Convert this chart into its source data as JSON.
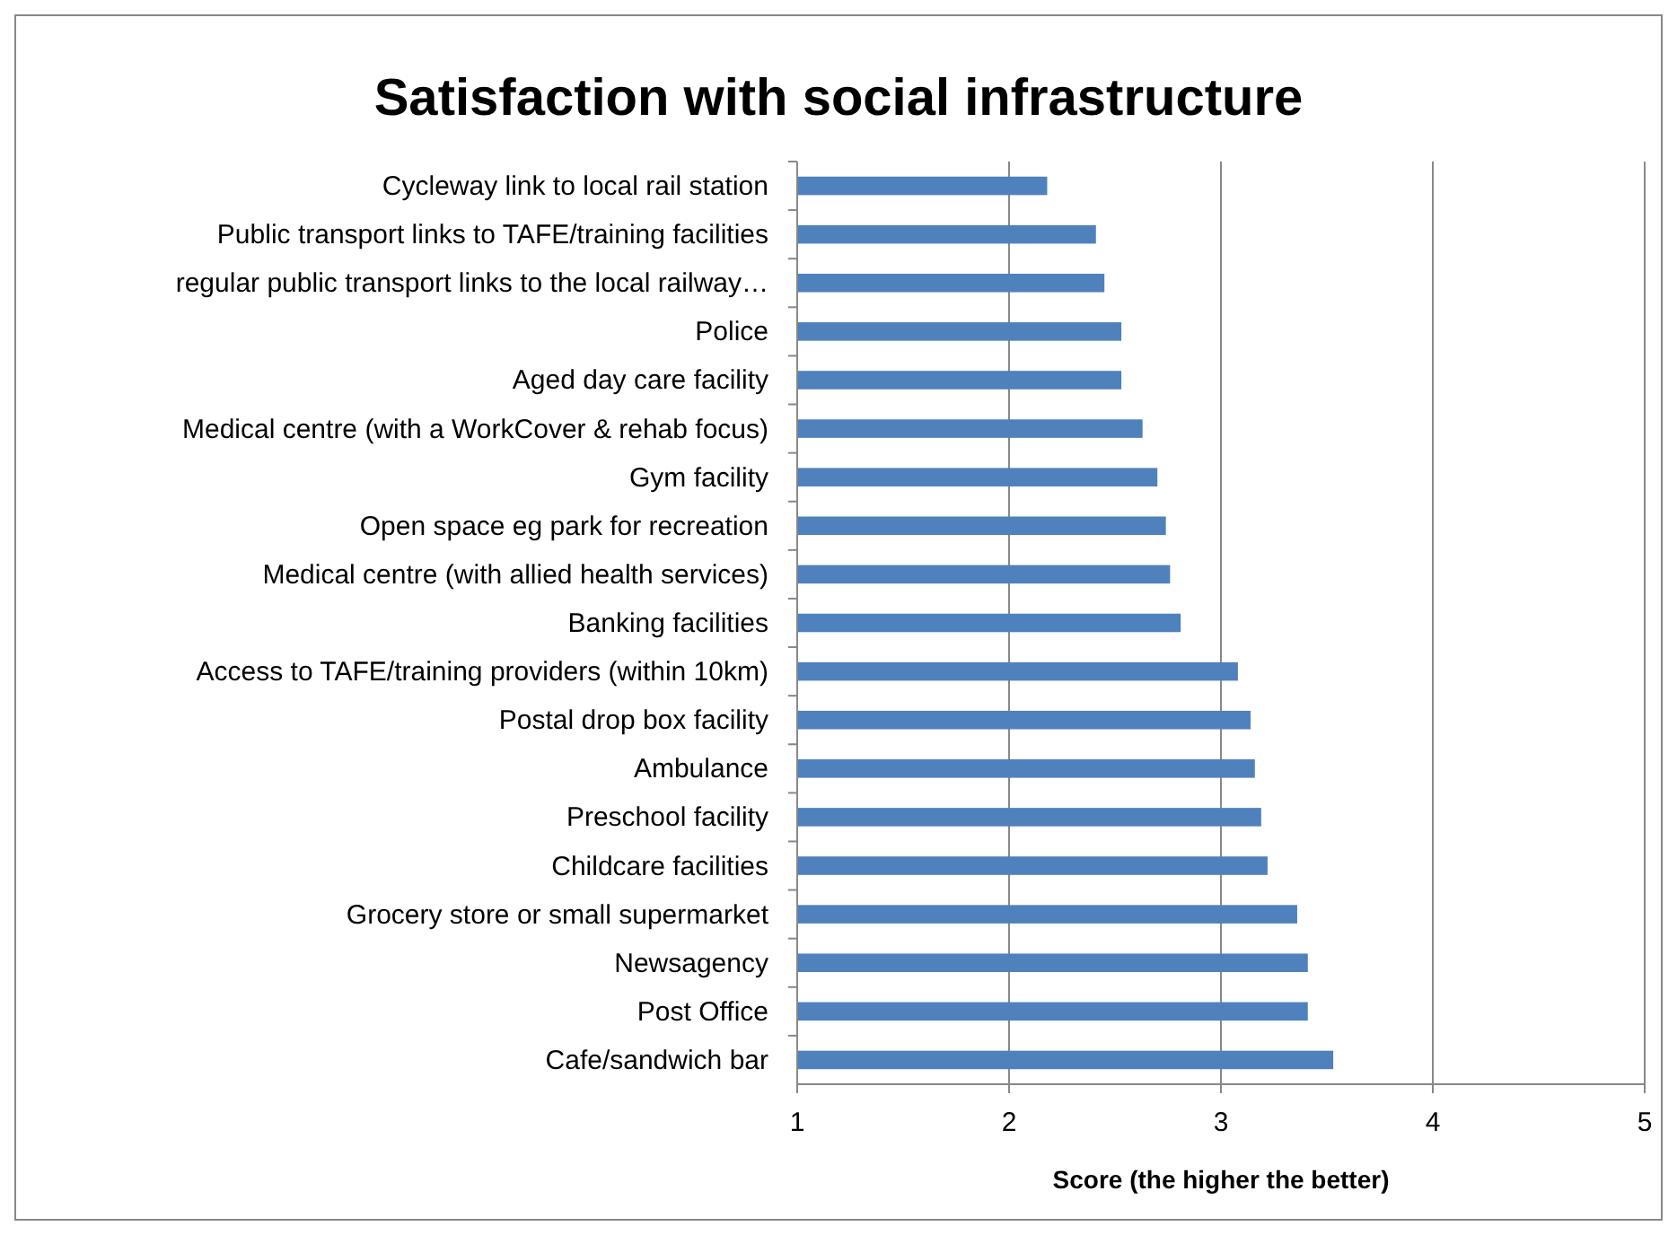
{
  "chart_data": {
    "type": "bar",
    "orientation": "horizontal",
    "title": "Satisfaction with social infrastructure",
    "xlabel": "Score (the higher the better)",
    "categories": [
      "Cycleway link to local rail station",
      "Public transport links to TAFE/training facilities",
      "regular public transport links to the local railway…",
      "Police",
      "Aged day care facility",
      "Medical centre (with a WorkCover & rehab focus)",
      "Gym facility",
      "Open space eg park for recreation",
      "Medical centre (with allied health services)",
      "Banking facilities",
      "Access to TAFE/training providers (within 10km)",
      "Postal drop box facility",
      "Ambulance",
      "Preschool facility",
      "Childcare facilities",
      "Grocery store or small supermarket",
      "Newsagency",
      "Post Office",
      "Cafe/sandwich bar"
    ],
    "values": [
      2.18,
      2.41,
      2.45,
      2.53,
      2.53,
      2.63,
      2.7,
      2.74,
      2.76,
      2.81,
      3.08,
      3.14,
      3.16,
      3.19,
      3.22,
      3.36,
      3.41,
      3.41,
      3.53
    ],
    "color": "#4f81bd",
    "xlim": [
      1,
      5
    ],
    "xticks": [
      1,
      2,
      3,
      4,
      5
    ],
    "grid": "x"
  }
}
